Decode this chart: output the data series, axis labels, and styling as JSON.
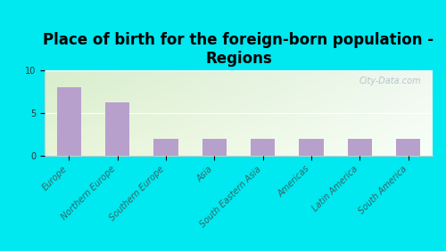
{
  "title": "Place of birth for the foreign-born population -\nRegions",
  "categories": [
    "Europe",
    "Northern Europe",
    "Southern Europe",
    "Asia",
    "South Eastern Asia",
    "Americas",
    "Latin America",
    "South America"
  ],
  "values": [
    8.0,
    6.2,
    2.0,
    2.0,
    2.0,
    2.0,
    2.0,
    2.0
  ],
  "bar_color": "#b8a0cc",
  "background_outer": "#00e8f0",
  "background_plot_topleft": "#ddeedd",
  "background_plot_topright": "#eef8ee",
  "background_plot_bottom": "#f8fff8",
  "ylim": [
    0,
    10
  ],
  "yticks": [
    0,
    5,
    10
  ],
  "title_fontsize": 12,
  "tick_fontsize": 7,
  "watermark": "City-Data.com",
  "watermark_fontsize": 7
}
